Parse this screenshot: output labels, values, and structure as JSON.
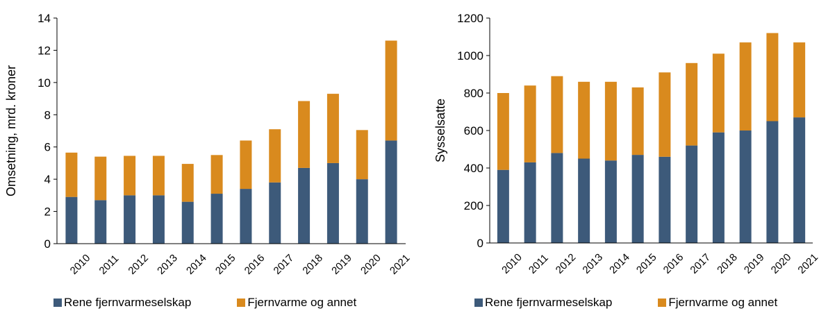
{
  "colors": {
    "primary": "#3d5a7a",
    "secondary": "#d98a1e"
  },
  "chart_data": [
    {
      "type": "bar",
      "stacked": true,
      "title": "",
      "xlabel": "",
      "ylabel": "Omsetning, mrd. kroner",
      "ylim": [
        0,
        14
      ],
      "yticks": [
        "0",
        "2",
        "4",
        "6",
        "8",
        "10",
        "12",
        "14"
      ],
      "categories": [
        "2010",
        "2011",
        "2012",
        "2013",
        "2014",
        "2015",
        "2016",
        "2017",
        "2018",
        "2019",
        "2020",
        "2021"
      ],
      "series": [
        {
          "name": "Rene fjernvarmeselskap",
          "color": "#3d5a7a",
          "values": [
            2.9,
            2.7,
            3.0,
            3.0,
            2.6,
            3.1,
            3.4,
            3.8,
            4.7,
            5.0,
            4.0,
            6.4
          ]
        },
        {
          "name": "Fjernvarme og annet",
          "color": "#d98a1e",
          "values": [
            2.75,
            2.7,
            2.45,
            2.45,
            2.35,
            2.4,
            3.0,
            3.3,
            4.15,
            4.3,
            3.05,
            6.2
          ]
        }
      ],
      "legend": "bottom"
    },
    {
      "type": "bar",
      "stacked": true,
      "title": "",
      "xlabel": "",
      "ylabel": "Sysselsatte",
      "ylim": [
        0,
        1200
      ],
      "yticks": [
        "0",
        "200",
        "400",
        "600",
        "800",
        "1000",
        "1200"
      ],
      "categories": [
        "2010",
        "2011",
        "2012",
        "2013",
        "2014",
        "2015",
        "2016",
        "2017",
        "2018",
        "2019",
        "2020",
        "2021"
      ],
      "series": [
        {
          "name": "Rene fjernvarmeselskap",
          "color": "#3d5a7a",
          "values": [
            390,
            430,
            480,
            450,
            440,
            470,
            460,
            520,
            590,
            600,
            650,
            670
          ]
        },
        {
          "name": "Fjernvarme og annet",
          "color": "#d98a1e",
          "values": [
            410,
            410,
            410,
            410,
            420,
            360,
            450,
            440,
            420,
            470,
            470,
            400
          ]
        }
      ],
      "legend": "bottom"
    }
  ]
}
